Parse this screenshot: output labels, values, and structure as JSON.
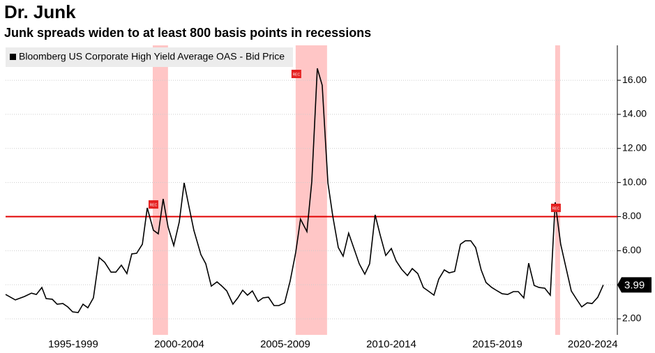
{
  "chart_data": {
    "type": "line",
    "title": "Dr. Junk",
    "subtitle": "Junk spreads widen to at least 800 basis points in recessions",
    "x": [
      1994.31,
      1994.77,
      1995.2,
      1995.53,
      1995.76,
      1996.02,
      1996.22,
      1996.51,
      1996.74,
      1997.01,
      1997.24,
      1997.47,
      1997.73,
      1997.96,
      1998.19,
      1998.45,
      1998.72,
      1998.98,
      1999.28,
      1999.51,
      1999.77,
      2000.03,
      2000.26,
      2000.49,
      2000.76,
      2000.99,
      2001.28,
      2001.51,
      2001.74,
      2001.97,
      2002.24,
      2002.5,
      2002.73,
      2002.96,
      2003.19,
      2003.52,
      2003.75,
      2004.01,
      2004.28,
      2004.51,
      2004.74,
      2005.03,
      2005.26,
      2005.49,
      2005.72,
      2005.95,
      2006.22,
      2006.45,
      2006.71,
      2006.97,
      2007.2,
      2007.47,
      2007.73,
      2007.99,
      2008.22,
      2008.52,
      2008.75,
      2009.01,
      2009.24,
      2009.51,
      2009.74,
      2010,
      2010.23,
      2010.49,
      2010.76,
      2010.99,
      2011.25,
      2011.48,
      2011.74,
      2011.97,
      2012.24,
      2012.5,
      2012.73,
      2012.99,
      2013.26,
      2013.49,
      2013.75,
      2014.01,
      2014.24,
      2014.51,
      2014.74,
      2015,
      2015.23,
      2015.49,
      2015.76,
      2015.99,
      2016.25,
      2016.48,
      2016.74,
      2016.97,
      2017.24,
      2017.5,
      2017.73,
      2017.99,
      2018.26,
      2018.49,
      2018.75,
      2018.98,
      2019.24,
      2019.47,
      2019.74,
      2020,
      2020.23,
      2020.49,
      2020.72,
      2020.99,
      2021.22,
      2021.48,
      2021.74,
      2021.97,
      2022.24,
      2022.5
    ],
    "series": [
      {
        "name": "Bloomberg US Corporate High Yield Average OAS - Bid Price",
        "color": "#000000",
        "values": [
          3.43,
          3.11,
          3.31,
          3.51,
          3.43,
          3.84,
          3.19,
          3.15,
          2.86,
          2.9,
          2.7,
          2.41,
          2.37,
          2.86,
          2.65,
          3.23,
          5.6,
          5.32,
          4.74,
          4.74,
          5.15,
          4.66,
          5.81,
          5.85,
          6.38,
          8.51,
          7.2,
          6.99,
          9.04,
          7.4,
          6.3,
          7.69,
          9.98,
          8.59,
          7.2,
          5.77,
          5.23,
          3.92,
          4.17,
          3.92,
          3.64,
          2.86,
          3.23,
          3.68,
          3.39,
          3.64,
          3.02,
          3.23,
          3.27,
          2.78,
          2.78,
          2.94,
          4.21,
          5.89,
          7.85,
          7.12,
          10.06,
          16.7,
          15.71,
          9.98,
          8.02,
          6.18,
          5.68,
          7.03,
          6.05,
          5.23,
          4.62,
          5.23,
          8.1,
          6.95,
          5.72,
          6.13,
          5.4,
          4.91,
          4.54,
          4.95,
          4.66,
          3.84,
          3.64,
          3.39,
          4.33,
          4.87,
          4.7,
          4.78,
          6.38,
          6.58,
          6.58,
          6.18,
          4.87,
          4.13,
          3.84,
          3.64,
          3.47,
          3.43,
          3.6,
          3.6,
          3.23,
          5.27,
          3.96,
          3.84,
          3.8,
          3.39,
          8.84,
          6.38,
          5.11,
          3.64,
          3.19,
          2.7,
          2.94,
          2.9,
          3.27,
          3.99
        ]
      }
    ],
    "xlim": [
      1994.31,
      2023.16
    ],
    "xticks": [
      {
        "value": 1997.5,
        "label": "1995-1999"
      },
      {
        "value": 2002.5,
        "label": "2000-2004"
      },
      {
        "value": 2007.5,
        "label": "2005-2009"
      },
      {
        "value": 2012.5,
        "label": "2010-2014"
      },
      {
        "value": 2017.5,
        "label": "2015-2019"
      },
      {
        "value": 2022,
        "label": "2020-2024"
      }
    ],
    "ylim": [
      1.06,
      18.05
    ],
    "yticks": [
      {
        "value": 2,
        "label": "2.00"
      },
      {
        "value": 4,
        "label": "4.00"
      },
      {
        "value": 6,
        "label": "6.00"
      },
      {
        "value": 8,
        "label": "8.00"
      },
      {
        "value": 10,
        "label": "10.00"
      },
      {
        "value": 12,
        "label": "12.00"
      },
      {
        "value": 14,
        "label": "14.00"
      },
      {
        "value": 16,
        "label": "16.00"
      }
    ],
    "grid": true,
    "threshold": 8,
    "threshold_color": "#e00000",
    "recessions": [
      {
        "start": 2001.25,
        "end": 2001.97
      },
      {
        "start": 2007.99,
        "end": 2009.47
      },
      {
        "start": 2020.23,
        "end": 2020.46
      }
    ],
    "recession_color": "#ffb3b3",
    "recession_label": "REC"
  }
}
